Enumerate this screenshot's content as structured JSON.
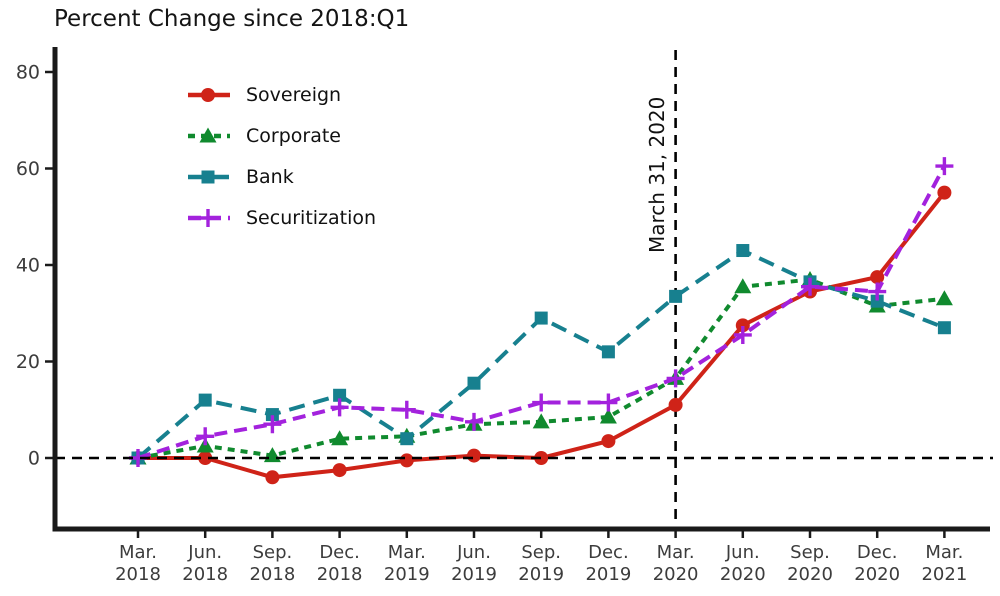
{
  "background_color": "#ffffff",
  "chart_data": {
    "type": "line",
    "title": "Percent Change since 2018:Q1",
    "xlabel": "",
    "ylabel": "",
    "ylim": [
      -13,
      85
    ],
    "y_ticks": [
      0,
      20,
      40,
      60,
      80
    ],
    "grid": "off",
    "legend_position": "upper-left-inside",
    "x_labels": [
      [
        "Mar.",
        "2018"
      ],
      [
        "Jun.",
        "2018"
      ],
      [
        "Sep.",
        "2018"
      ],
      [
        "Dec.",
        "2018"
      ],
      [
        "Mar.",
        "2019"
      ],
      [
        "Jun.",
        "2019"
      ],
      [
        "Sep.",
        "2019"
      ],
      [
        "Dec.",
        "2019"
      ],
      [
        "Mar.",
        "2020"
      ],
      [
        "Jun.",
        "2020"
      ],
      [
        "Sep.",
        "2020"
      ],
      [
        "Dec.",
        "2020"
      ],
      [
        "Mar.",
        "2021"
      ]
    ],
    "series": [
      {
        "name": "Sovereign",
        "color": "#cf2318",
        "line_style": "solid",
        "marker": "circle",
        "values": [
          0,
          0,
          -4,
          -2.5,
          -0.5,
          0.5,
          0,
          3.5,
          11,
          27.5,
          34.5,
          37.5,
          55
        ]
      },
      {
        "name": "Corporate",
        "color": "#108a2e",
        "line_style": "dash-short",
        "marker": "triangle",
        "values": [
          0,
          2.5,
          0.5,
          4,
          4.5,
          7,
          7.5,
          8.5,
          16.5,
          35.5,
          37,
          31.5,
          33
        ]
      },
      {
        "name": "Bank",
        "color": "#17808f",
        "line_style": "dash-long",
        "marker": "square",
        "values": [
          0,
          12,
          9,
          13,
          4,
          15.5,
          29,
          22,
          33.5,
          43,
          36.5,
          32.5,
          27
        ]
      },
      {
        "name": "Securitization",
        "color": "#a322dd",
        "line_style": "dash-med",
        "marker": "plus",
        "values": [
          0,
          4.5,
          7,
          10.5,
          10,
          7.5,
          11.5,
          11.5,
          16.5,
          25.5,
          35.5,
          34.5,
          60.5
        ]
      }
    ],
    "reference_lines": {
      "horizontal_y": 0,
      "vertical_x_index": 8,
      "vertical_label": "March 31, 2020",
      "color": "#000000"
    }
  }
}
